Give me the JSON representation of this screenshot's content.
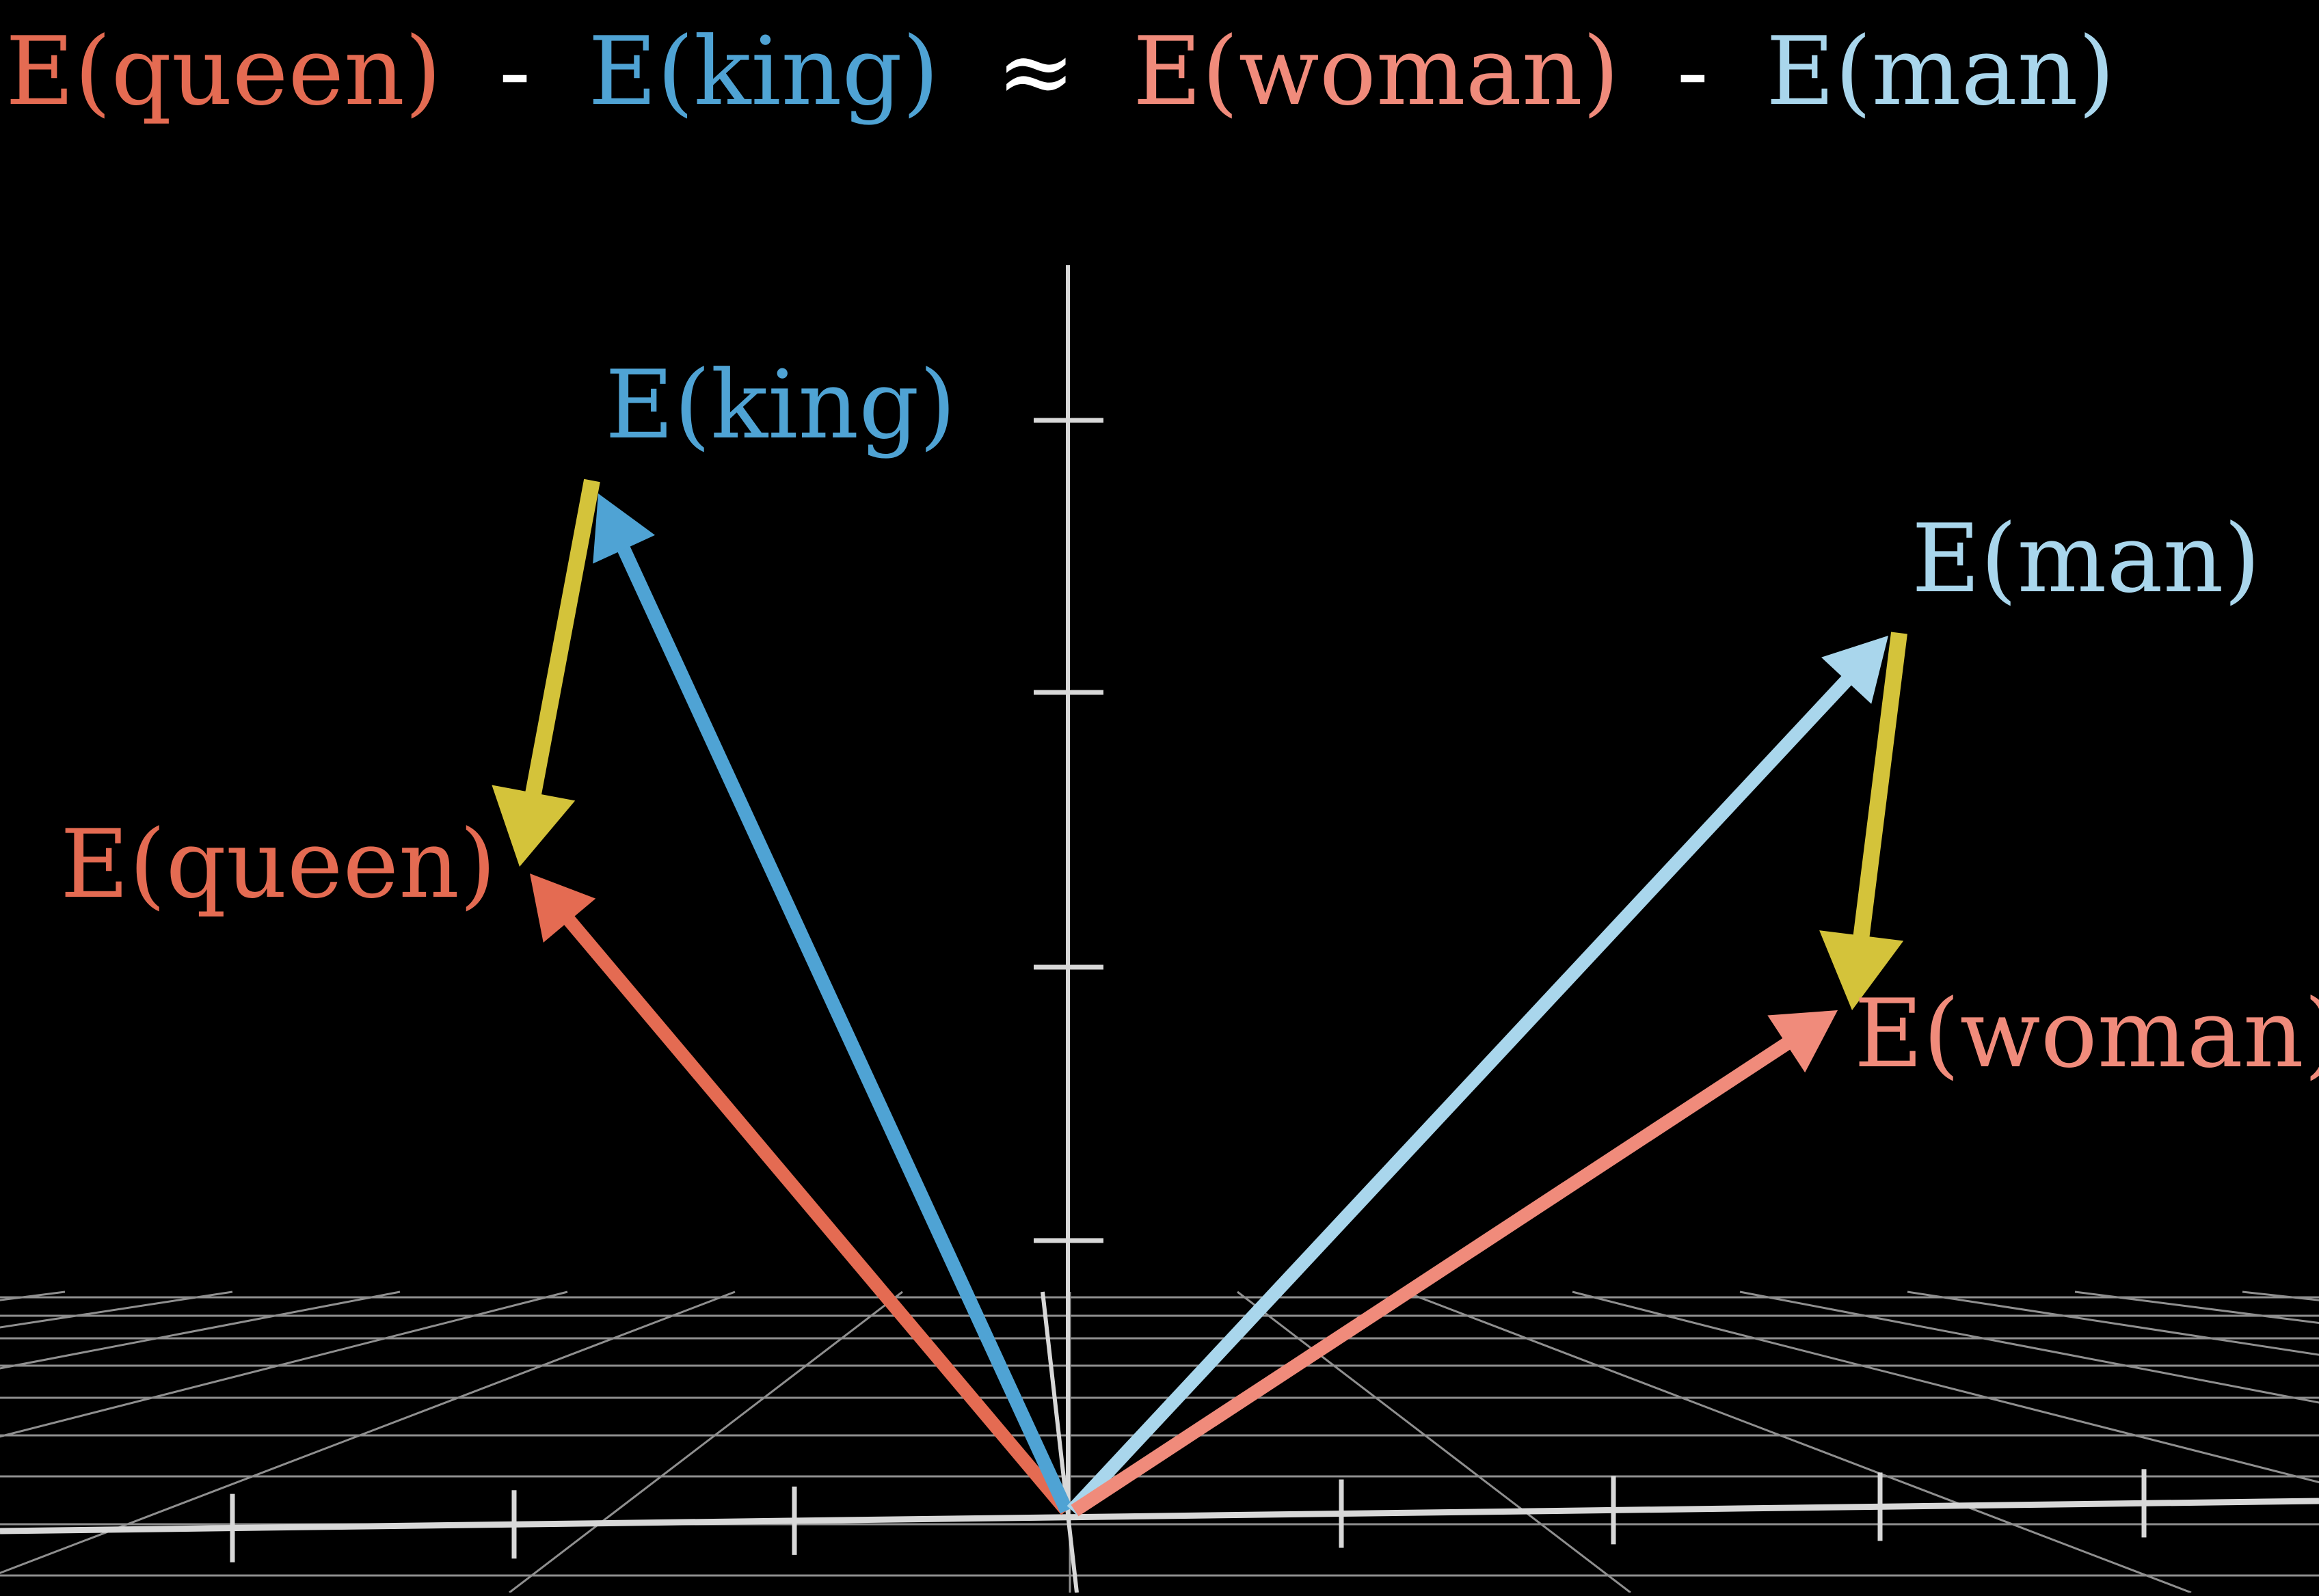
{
  "equation": {
    "term1": "E(queen)",
    "op1": "-",
    "term2": "E(king)",
    "op2": "≈",
    "term3": "E(woman)",
    "op3": "-",
    "term4": "E(man)"
  },
  "labels": {
    "king": "E(king)",
    "queen": "E(queen)",
    "man": "E(man)",
    "woman": "E(woman)"
  },
  "colors": {
    "background": "#000000",
    "queen": "#e46b52",
    "king": "#4fa3d4",
    "woman": "#f08b7b",
    "man": "#a9d6ec",
    "difference": "#d4c33a",
    "axis": "#d8d8d8",
    "operator": "#ffffff"
  }
}
